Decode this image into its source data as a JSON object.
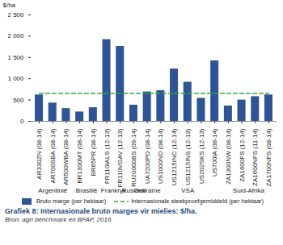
{
  "chart_data": {
    "type": "bar",
    "title": "Grafiek 8: Internasionale bruto marges vir mielies: $/ha.",
    "subtitle": "Bron: agri benchmark en BFAP, 2016",
    "y_label": "$/ha",
    "categories": [
      "AR330ZN (08-14)",
      "AR700SBA (08-14)",
      "AR500WBA (08-14)",
      "BR1300MT (08-14)",
      "BR65PR (08-14)",
      "FR110IALS (12-13)",
      "FR110VGAV (12-13)",
      "RU20000BS (09-14)",
      "UA7200PO (08-14)",
      "US1000ND (08-14)",
      "US1215INC (12-14)",
      "US1215INS (12-13)",
      "US202SKS (12-13)",
      "US700IA (08-14)",
      "ZA1300NW (08-14)",
      "ZA1600FS (12-14)",
      "ZA1600NFS (11-14)",
      "ZA1700NFS (08-14)"
    ],
    "groups": [
      {
        "label": "Argentinië",
        "count": 3
      },
      {
        "label": "Brasilië",
        "count": 2
      },
      {
        "label": "Frankryk",
        "count": 2
      },
      {
        "label": "Rusland",
        "count": 1
      },
      {
        "label": "Oekraïne",
        "count": 1
      },
      {
        "label": "VSA",
        "count": 5
      },
      {
        "label": "Suid-Afrika",
        "count": 4
      }
    ],
    "series": [
      {
        "name": "Bruto marge (per hektaar)",
        "type": "bar",
        "color": "#2f5496",
        "values": [
          620,
          430,
          300,
          220,
          320,
          1920,
          1760,
          380,
          690,
          720,
          1230,
          920,
          540,
          1420,
          360,
          500,
          580,
          620
        ]
      },
      {
        "name": "Internasionale steekproefgemiddeld (per hektaar)",
        "type": "line",
        "line_style": "dashed",
        "color": "#3aa845",
        "values": [
          660,
          660,
          660,
          660,
          660,
          660,
          660,
          660,
          660,
          660,
          660,
          660,
          660,
          660,
          660,
          660,
          660,
          660
        ]
      }
    ],
    "ylim": [
      0,
      2500
    ],
    "yticks": [
      0,
      500,
      {
        "value": 1000,
        "label": "1 000"
      },
      {
        "value": 1500,
        "label": "1 500"
      },
      {
        "value": 2000,
        "label": "2 000"
      },
      {
        "value": 2500,
        "label": "2 500"
      }
    ],
    "grid": false,
    "legend": "bottom"
  }
}
